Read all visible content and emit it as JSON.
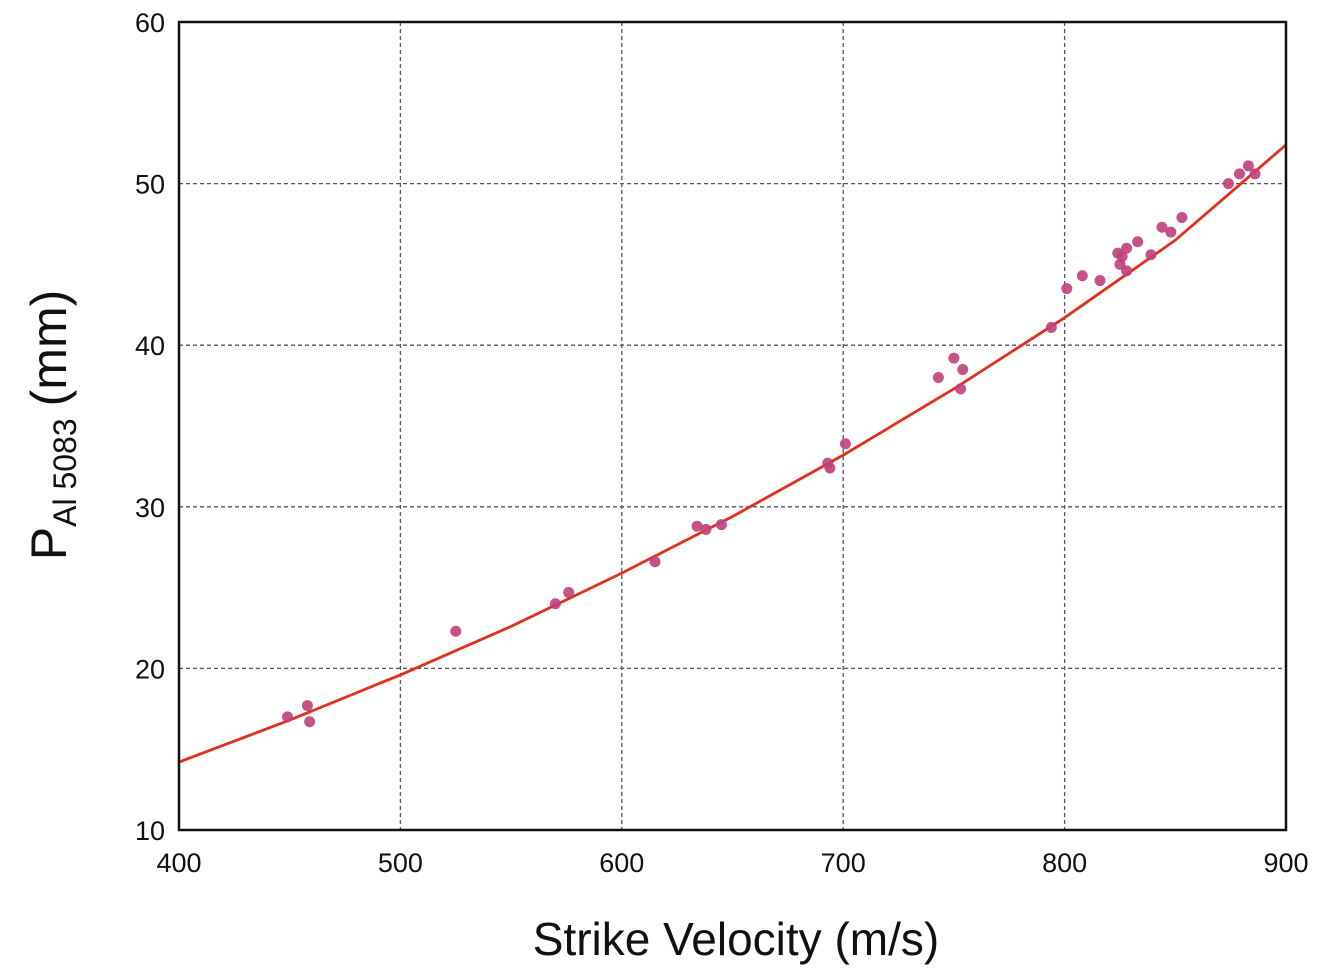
{
  "chart_data": {
    "type": "scatter",
    "xlabel": "Strike Velocity (m/s)",
    "ylabel": {
      "main": "P",
      "subscript": "Al 5083",
      "unit": "(mm)"
    },
    "xlim": [
      400,
      900
    ],
    "ylim": [
      10,
      60
    ],
    "x_ticks": [
      400,
      500,
      600,
      700,
      800,
      900
    ],
    "y_ticks": [
      10,
      20,
      30,
      40,
      50,
      60
    ],
    "grid": true,
    "colors": {
      "points": "#c0407a",
      "fit_line": "#e0301e",
      "grid": "#555555",
      "axes": "#111111"
    },
    "series": [
      {
        "type": "scatter",
        "points": [
          [
            449,
            17.0
          ],
          [
            458,
            17.7
          ],
          [
            459,
            16.7
          ],
          [
            525,
            22.3
          ],
          [
            570,
            24.0
          ],
          [
            576,
            24.7
          ],
          [
            615,
            26.6
          ],
          [
            634,
            28.8
          ],
          [
            638,
            28.6
          ],
          [
            645,
            28.9
          ],
          [
            693,
            32.7
          ],
          [
            694,
            32.4
          ],
          [
            701,
            33.9
          ],
          [
            743,
            38.0
          ],
          [
            750,
            39.2
          ],
          [
            753,
            37.3
          ],
          [
            754,
            38.5
          ],
          [
            794,
            41.1
          ],
          [
            801,
            43.5
          ],
          [
            808,
            44.3
          ],
          [
            816,
            44.0
          ],
          [
            824,
            45.7
          ],
          [
            825,
            45.0
          ],
          [
            826,
            45.5
          ],
          [
            828,
            46.0
          ],
          [
            828,
            44.6
          ],
          [
            833,
            46.4
          ],
          [
            839,
            45.6
          ],
          [
            844,
            47.3
          ],
          [
            848,
            47.0
          ],
          [
            853,
            47.9
          ],
          [
            874,
            50.0
          ],
          [
            879,
            50.6
          ],
          [
            883,
            51.1
          ],
          [
            886,
            50.6
          ]
        ]
      },
      {
        "type": "line",
        "x": [
          400,
          450,
          500,
          550,
          600,
          650,
          700,
          750,
          800,
          850,
          900
        ],
        "y": [
          14.2,
          16.8,
          19.6,
          22.6,
          25.9,
          29.4,
          33.2,
          37.3,
          41.7,
          46.5,
          52.4
        ]
      }
    ]
  }
}
